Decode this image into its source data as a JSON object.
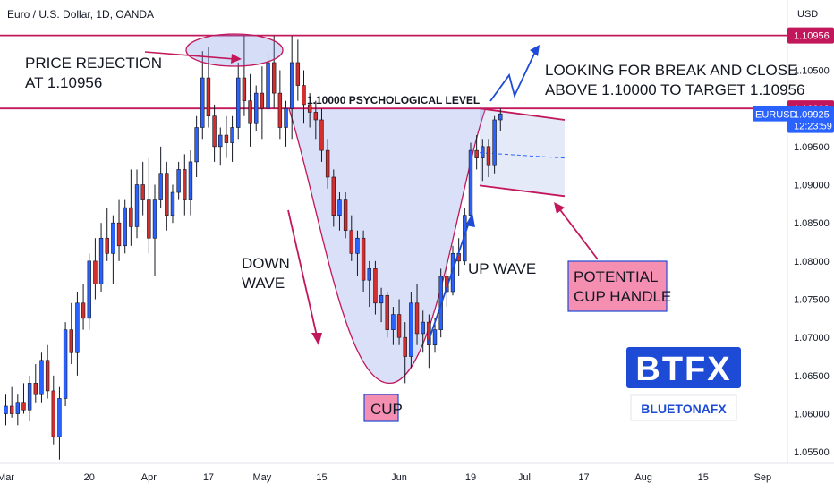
{
  "header": {
    "title": "Euro / U.S. Dollar, 1D, OANDA",
    "currency": "USD"
  },
  "chart_data": {
    "type": "candlestick",
    "yrange": [
      1.0535,
      1.1142
    ],
    "y_ticks": [
      "1.05500",
      "1.06000",
      "1.06500",
      "1.07000",
      "1.07500",
      "1.08000",
      "1.08500",
      "1.09000",
      "1.09500",
      "1.10000",
      "1.10500",
      "1.10956"
    ],
    "y_tick_values": [
      1.055,
      1.06,
      1.065,
      1.07,
      1.075,
      1.08,
      1.085,
      1.09,
      1.095,
      1.1,
      1.105,
      1.10956
    ],
    "x_ticks": [
      {
        "label": "Mar",
        "i": 0
      },
      {
        "label": "20",
        "i": 14
      },
      {
        "label": "Apr",
        "i": 24
      },
      {
        "label": "17",
        "i": 34
      },
      {
        "label": "May",
        "i": 43
      },
      {
        "label": "15",
        "i": 53
      },
      {
        "label": "Jun",
        "i": 66
      },
      {
        "label": "19",
        "i": 78
      },
      {
        "label": "Jul",
        "i": 87
      },
      {
        "label": "17",
        "i": 97
      },
      {
        "label": "Aug",
        "i": 107
      },
      {
        "label": "15",
        "i": 117
      },
      {
        "label": "Sep",
        "i": 127
      }
    ],
    "candles": [
      [
        1.06,
        1.0625,
        1.0585,
        1.061
      ],
      [
        1.061,
        1.0635,
        1.0595,
        1.06
      ],
      [
        1.06,
        1.0625,
        1.0585,
        1.0615
      ],
      [
        1.0615,
        1.064,
        1.06,
        1.0605
      ],
      [
        1.0605,
        1.065,
        1.059,
        1.064
      ],
      [
        1.064,
        1.0665,
        1.0615,
        1.0625
      ],
      [
        1.0625,
        1.068,
        1.0615,
        1.067
      ],
      [
        1.067,
        1.069,
        1.062,
        1.063
      ],
      [
        1.063,
        1.065,
        1.056,
        1.057
      ],
      [
        1.057,
        1.0635,
        1.054,
        1.062
      ],
      [
        1.062,
        1.072,
        1.061,
        1.071
      ],
      [
        1.071,
        1.0745,
        1.0665,
        1.068
      ],
      [
        1.068,
        1.076,
        1.065,
        1.0745
      ],
      [
        1.0745,
        1.077,
        1.071,
        1.0725
      ],
      [
        1.0725,
        1.081,
        1.071,
        1.08
      ],
      [
        1.08,
        1.083,
        1.075,
        1.077
      ],
      [
        1.077,
        1.085,
        1.076,
        1.083
      ],
      [
        1.083,
        1.087,
        1.08,
        1.081
      ],
      [
        1.081,
        1.086,
        1.077,
        1.085
      ],
      [
        1.085,
        1.088,
        1.08,
        1.082
      ],
      [
        1.082,
        1.088,
        1.081,
        1.087
      ],
      [
        1.087,
        1.092,
        1.082,
        1.0845
      ],
      [
        1.0845,
        1.092,
        1.083,
        1.09
      ],
      [
        1.09,
        1.093,
        1.086,
        1.088
      ],
      [
        1.088,
        1.0935,
        1.081,
        1.083
      ],
      [
        1.083,
        1.09,
        1.078,
        1.088
      ],
      [
        1.088,
        1.095,
        1.087,
        1.0915
      ],
      [
        1.0915,
        1.093,
        1.084,
        1.086
      ],
      [
        1.086,
        1.09,
        1.085,
        1.089
      ],
      [
        1.089,
        1.093,
        1.088,
        1.092
      ],
      [
        1.092,
        1.094,
        1.086,
        1.088
      ],
      [
        1.088,
        1.0945,
        1.086,
        1.093
      ],
      [
        1.093,
        1.099,
        1.091,
        1.0975
      ],
      [
        1.0975,
        1.1075,
        1.096,
        1.104
      ],
      [
        1.104,
        1.108,
        1.0975,
        1.099
      ],
      [
        1.099,
        1.1005,
        1.093,
        1.095
      ],
      [
        1.095,
        1.0975,
        1.0925,
        1.0965
      ],
      [
        1.0965,
        1.099,
        1.0935,
        1.0955
      ],
      [
        1.0955,
        1.099,
        1.093,
        1.0975
      ],
      [
        1.0975,
        1.106,
        1.096,
        1.104
      ],
      [
        1.104,
        1.1095,
        1.099,
        1.101
      ],
      [
        1.101,
        1.1045,
        1.095,
        1.098
      ],
      [
        1.098,
        1.103,
        1.097,
        1.102
      ],
      [
        1.102,
        1.1055,
        1.096,
        1.1
      ],
      [
        1.1,
        1.1075,
        1.099,
        1.106
      ],
      [
        1.106,
        1.1095,
        1.1,
        1.102
      ],
      [
        1.102,
        1.105,
        1.096,
        1.0975
      ],
      [
        1.0975,
        1.101,
        1.095,
        1.1
      ],
      [
        1.1,
        1.1095,
        1.096,
        1.106
      ],
      [
        1.106,
        1.109,
        1.101,
        1.103
      ],
      [
        1.103,
        1.105,
        1.098,
        1.1005
      ],
      [
        1.1005,
        1.102,
        1.0975,
        1.0995
      ],
      [
        1.0995,
        1.101,
        1.096,
        1.0985
      ],
      [
        1.0985,
        1.1,
        1.093,
        1.0945
      ],
      [
        1.0945,
        1.096,
        1.0895,
        1.091
      ],
      [
        1.091,
        1.092,
        1.0845,
        1.086
      ],
      [
        1.086,
        1.089,
        1.084,
        1.088
      ],
      [
        1.088,
        1.089,
        1.083,
        1.084
      ],
      [
        1.084,
        1.086,
        1.08,
        1.081
      ],
      [
        1.081,
        1.084,
        1.078,
        1.083
      ],
      [
        1.083,
        1.084,
        1.076,
        1.0775
      ],
      [
        1.0775,
        1.08,
        1.074,
        1.079
      ],
      [
        1.079,
        1.08,
        1.073,
        1.0745
      ],
      [
        1.0745,
        1.0765,
        1.072,
        1.0755
      ],
      [
        1.0755,
        1.076,
        1.07,
        1.071
      ],
      [
        1.071,
        1.074,
        1.069,
        1.073
      ],
      [
        1.073,
        1.075,
        1.069,
        1.07
      ],
      [
        1.07,
        1.072,
        1.064,
        1.0675
      ],
      [
        1.0675,
        1.076,
        1.066,
        1.0745
      ],
      [
        1.0745,
        1.077,
        1.069,
        1.0705
      ],
      [
        1.0705,
        1.0735,
        1.068,
        1.072
      ],
      [
        1.072,
        1.073,
        1.066,
        1.069
      ],
      [
        1.069,
        1.0725,
        1.068,
        1.071
      ],
      [
        1.071,
        1.079,
        1.07,
        1.078
      ],
      [
        1.078,
        1.08,
        1.074,
        1.076
      ],
      [
        1.076,
        1.082,
        1.0755,
        1.081
      ],
      [
        1.081,
        1.083,
        1.078,
        1.08
      ],
      [
        1.08,
        1.087,
        1.0795,
        1.086
      ],
      [
        1.086,
        1.0955,
        1.085,
        1.0945
      ],
      [
        1.0945,
        1.0965,
        1.092,
        1.0935
      ],
      [
        1.0935,
        1.096,
        1.0905,
        1.095
      ],
      [
        1.095,
        1.096,
        1.091,
        1.0925
      ],
      [
        1.0925,
        1.099,
        1.0915,
        1.0985
      ],
      [
        1.0985,
        1.1,
        1.097,
        1.0993
      ]
    ],
    "lines": {
      "resistance": 1.10956,
      "psychological": 1.1
    },
    "current_price": 1.09925,
    "countdown": "12:23:59",
    "symbol": "EURUSD"
  },
  "annotations": {
    "price_rejection": [
      "PRICE REJECTION",
      "AT 1.10956"
    ],
    "psych_level": "1.10000 PSYCHOLOGICAL LEVEL",
    "looking_for": [
      "LOOKING FOR BREAK AND CLOSE",
      "ABOVE 1.10000 TO TARGET 1.10956"
    ],
    "down_wave": [
      "DOWN",
      "WAVE"
    ],
    "up_wave": "UP WAVE",
    "cup": "CUP",
    "cup_handle": [
      "POTENTIAL",
      "CUP HANDLE"
    ]
  },
  "logo": {
    "btfx": "BTFX",
    "bluetona": "BLUETONAFX"
  },
  "colors": {
    "bull": "#2962ff",
    "bear": "#d32f2f",
    "line": "#c2185b",
    "blue": "#1e4bd6",
    "shade": "rgba(120,145,230,0.28)",
    "handle": "rgba(150,170,230,0.25)"
  }
}
